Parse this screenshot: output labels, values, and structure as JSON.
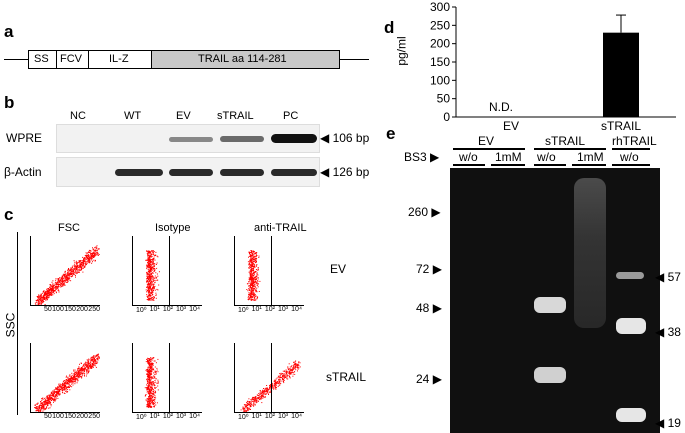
{
  "panel_a": {
    "letter": "a",
    "segments": [
      "SS",
      "FCV",
      "IL-Z",
      "TRAIL aa 114-281"
    ]
  },
  "panel_b": {
    "letter": "b",
    "lanes": [
      "NC",
      "WT",
      "EV",
      "sTRAIL",
      "PC"
    ],
    "rows": [
      "WPRE",
      "β-Actin"
    ],
    "sizes": [
      "106 bp",
      "126 bp"
    ]
  },
  "panel_c": {
    "letter": "c",
    "y_label": "SSC",
    "columns": [
      "FSC",
      "Isotype",
      "anti-TRAIL"
    ],
    "rows": [
      "EV",
      "sTRAIL"
    ],
    "fsc_ticks": [
      "50",
      "100",
      "150",
      "200",
      "250"
    ],
    "log_ticks": [
      "10⁰",
      "10¹",
      "10²",
      "10³",
      "10⁴"
    ],
    "colors": {
      "dots": "#ff0000"
    }
  },
  "panel_d": {
    "letter": "d",
    "chart_data": {
      "type": "bar",
      "categories": [
        "EV",
        "sTRAIL"
      ],
      "values": [
        0,
        230
      ],
      "error": [
        0,
        48
      ],
      "ylabel": "pg/ml",
      "ylim": [
        0,
        300
      ],
      "yticks": [
        "0",
        "50",
        "100",
        "150",
        "200",
        "250",
        "300"
      ],
      "annotation": "N.D."
    }
  },
  "panel_e": {
    "letter": "e",
    "group_labels": [
      "EV",
      "sTRAIL",
      "rhTRAIL"
    ],
    "bs3_label": "BS3",
    "conditions": [
      "w/o",
      "1mM",
      "w/o",
      "1mM",
      "w/o"
    ],
    "left_markers": [
      "260",
      "72",
      "48",
      "24"
    ],
    "right_markers": [
      "57",
      "38",
      "19"
    ]
  }
}
